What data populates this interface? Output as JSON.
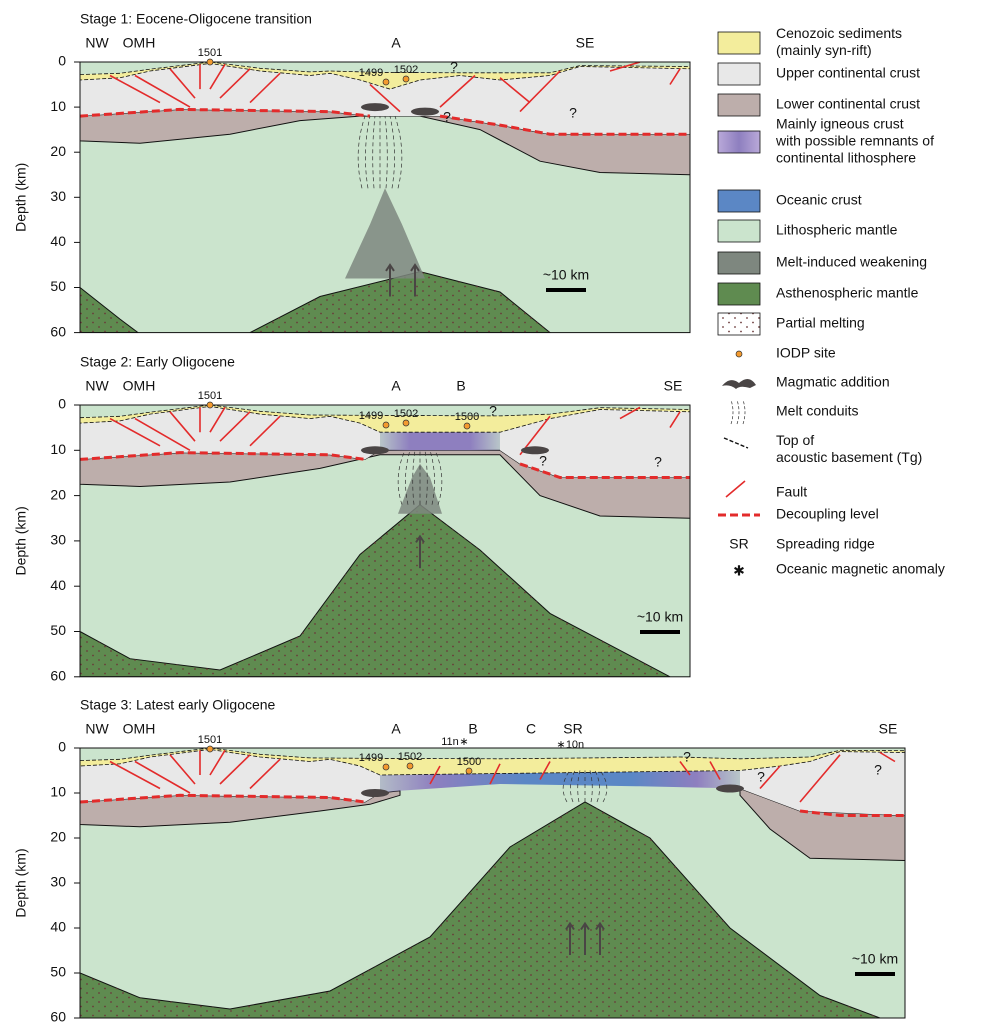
{
  "panels": [
    {
      "title": "Stage 1: Eocene-Oligocene transition",
      "labels": [
        "NW",
        "OMH",
        "A",
        "SE"
      ],
      "sites": [
        "1501",
        "1499",
        "1502"
      ],
      "question_marks": [
        "?",
        "?",
        "?"
      ],
      "y_axis_label": "Depth (km)",
      "yticks": [
        0,
        10,
        20,
        30,
        40,
        50,
        60
      ],
      "scale_bar": "~10 km"
    },
    {
      "title": "Stage 2: Early Oligocene",
      "labels": [
        "NW",
        "OMH",
        "A",
        "B",
        "SE"
      ],
      "sites": [
        "1501",
        "1499",
        "1502",
        "1500"
      ],
      "question_marks": [
        "?",
        "?",
        "?"
      ],
      "y_axis_label": "Depth (km)",
      "yticks": [
        0,
        10,
        20,
        30,
        40,
        50,
        60
      ],
      "scale_bar": "~10 km"
    },
    {
      "title": "Stage 3: Latest early Oligocene",
      "labels": [
        "NW",
        "OMH",
        "A",
        "B",
        "C",
        "SR",
        "SE"
      ],
      "sites": [
        "1501",
        "1499",
        "1502",
        "1500"
      ],
      "anomalies": [
        "11n",
        "10n"
      ],
      "question_marks": [
        "?",
        "?",
        "?"
      ],
      "y_axis_label": "Depth (km)",
      "yticks": [
        0,
        10,
        20,
        30,
        40,
        50,
        60
      ],
      "scale_bar": "~10 km"
    }
  ],
  "legend": [
    {
      "label": [
        "Cenozoic sediments",
        "(mainly syn-rift)"
      ]
    },
    {
      "label": [
        "Upper continental crust"
      ]
    },
    {
      "label": [
        "Lower continental crust"
      ]
    },
    {
      "label": [
        "Mainly igneous crust",
        "with possible remnants of",
        "continental lithosphere"
      ]
    },
    {
      "label": [
        "Oceanic crust"
      ]
    },
    {
      "label": [
        "Lithospheric mantle"
      ]
    },
    {
      "label": [
        "Melt-induced weakening"
      ]
    },
    {
      "label": [
        "Asthenospheric mantle"
      ]
    },
    {
      "label": [
        "Partial melting"
      ]
    },
    {
      "label": [
        "IODP site"
      ]
    },
    {
      "label": [
        "Magmatic addition"
      ]
    },
    {
      "label": [
        "Melt conduits"
      ]
    },
    {
      "label": [
        "Top of",
        "acoustic basement (Tg)"
      ]
    },
    {
      "label": [
        "Fault"
      ]
    },
    {
      "label": [
        "Decoupling level"
      ]
    },
    {
      "symbol": "SR",
      "label": [
        "Spreading ridge"
      ]
    },
    {
      "label": [
        "Oceanic magnetic anomaly"
      ]
    }
  ]
}
